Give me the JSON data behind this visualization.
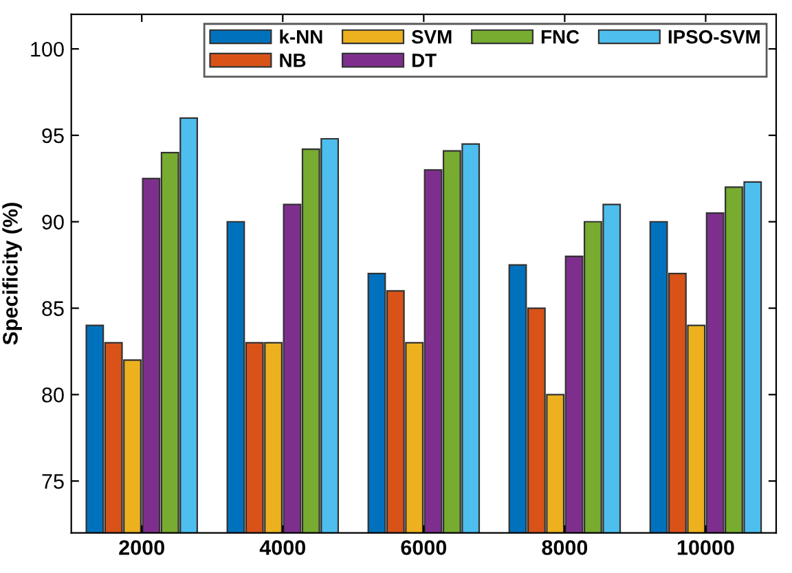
{
  "chart_data": {
    "type": "bar",
    "ylabel": "Specificity (%)",
    "categories": [
      "2000",
      "4000",
      "6000",
      "8000",
      "10000"
    ],
    "series": [
      {
        "name": "k-NN",
        "color": "#0072bd",
        "values": [
          84,
          90,
          87,
          87.5,
          90
        ]
      },
      {
        "name": "NB",
        "color": "#d95319",
        "values": [
          83,
          83,
          86,
          85,
          87
        ]
      },
      {
        "name": "SVM",
        "color": "#edb120",
        "values": [
          82,
          83,
          83,
          80,
          84
        ]
      },
      {
        "name": "DT",
        "color": "#7e2f8e",
        "values": [
          92.5,
          91,
          93,
          88,
          90.5
        ]
      },
      {
        "name": "FNC",
        "color": "#77ac30",
        "values": [
          94,
          94.2,
          94.1,
          90,
          92
        ]
      },
      {
        "name": "IPSO-SVM",
        "color": "#4dbeee",
        "values": [
          96,
          94.8,
          94.5,
          91,
          92.3
        ]
      }
    ],
    "ylim": [
      72,
      102
    ],
    "yticks": [
      75,
      80,
      85,
      90,
      95,
      100
    ],
    "grid": false,
    "legend": "top right"
  }
}
